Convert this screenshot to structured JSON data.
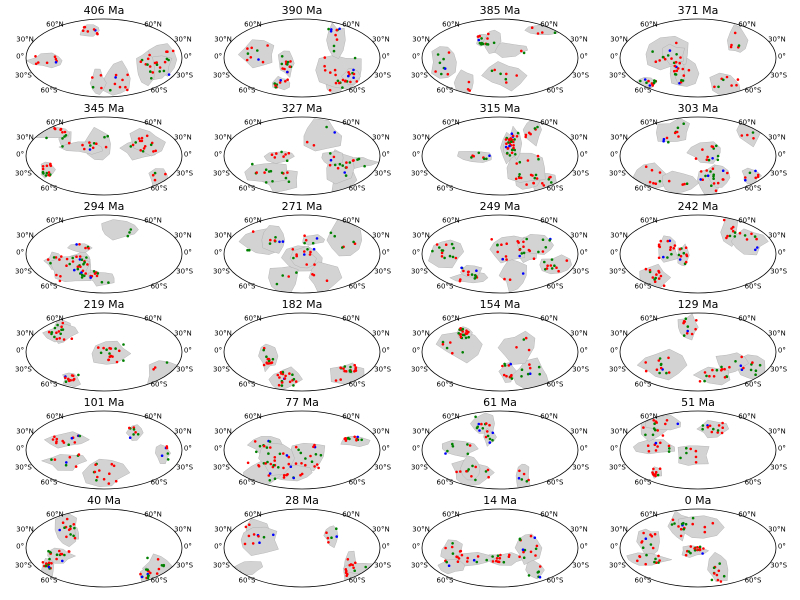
{
  "figure": {
    "projection": "mollweide",
    "grid": false,
    "colors": {
      "landmass": "#d3d3d3",
      "landmass_outline": "#a9a9a9",
      "map_border": "#000000",
      "point_red": "#ff0000",
      "point_green": "#008000",
      "point_blue": "#0000ff"
    },
    "lat_ticks_left": [
      "60°N",
      "30°N",
      "0°",
      "30°S",
      "60°S"
    ],
    "lat_ticks_right": [
      "60°N",
      "30°N",
      "0°",
      "30°S",
      "60°S"
    ]
  },
  "panels": [
    {
      "title": "406 Ma"
    },
    {
      "title": "390 Ma"
    },
    {
      "title": "385 Ma"
    },
    {
      "title": "371 Ma"
    },
    {
      "title": "345 Ma"
    },
    {
      "title": "327 Ma"
    },
    {
      "title": "315 Ma"
    },
    {
      "title": "303 Ma"
    },
    {
      "title": "294 Ma"
    },
    {
      "title": "271 Ma"
    },
    {
      "title": "249 Ma"
    },
    {
      "title": "242 Ma"
    },
    {
      "title": "219 Ma"
    },
    {
      "title": "182 Ma"
    },
    {
      "title": "154 Ma"
    },
    {
      "title": "129 Ma"
    },
    {
      "title": "101 Ma"
    },
    {
      "title": "77 Ma"
    },
    {
      "title": "61 Ma"
    },
    {
      "title": "51 Ma"
    },
    {
      "title": "40 Ma"
    },
    {
      "title": "28 Ma"
    },
    {
      "title": "14 Ma"
    },
    {
      "title": "0 Ma"
    }
  ]
}
